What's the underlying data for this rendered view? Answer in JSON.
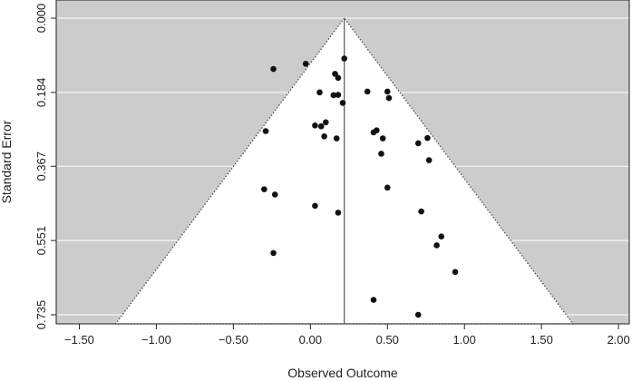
{
  "chart_data": {
    "type": "scatter",
    "subtype": "funnel-plot",
    "title": "",
    "xlabel": "Observed Outcome",
    "ylabel": "Standard Error",
    "xlim": [
      -1.65,
      2.07
    ],
    "ylim": [
      0.0,
      0.735
    ],
    "y_reversed": true,
    "x_ticks": [
      -1.5,
      -1.0,
      -0.5,
      0.0,
      0.5,
      1.0,
      1.5,
      2.0
    ],
    "x_tick_labels": [
      "−1.50",
      "−1.00",
      "−0.50",
      "0.00",
      "0.50",
      "1.00",
      "1.50",
      "2.00"
    ],
    "y_ticks": [
      0.0,
      0.184,
      0.367,
      0.551,
      0.735
    ],
    "y_tick_labels": [
      "0.000",
      "0.184",
      "0.367",
      "0.551",
      "0.735"
    ],
    "center_estimate": 0.22,
    "funnel_z": 1.96,
    "grid": true,
    "colors": {
      "outside_region": "#cccccc",
      "funnel_region": "#ffffff",
      "gridline": "#ffffff",
      "points": "#111111",
      "center_line": "#555555"
    },
    "points": [
      {
        "x": 0.22,
        "y": 0.1
      },
      {
        "x": -0.03,
        "y": 0.113
      },
      {
        "x": -0.24,
        "y": 0.126
      },
      {
        "x": 0.16,
        "y": 0.138
      },
      {
        "x": 0.18,
        "y": 0.148
      },
      {
        "x": 0.06,
        "y": 0.184
      },
      {
        "x": 0.37,
        "y": 0.182
      },
      {
        "x": 0.5,
        "y": 0.182
      },
      {
        "x": 0.15,
        "y": 0.191
      },
      {
        "x": 0.18,
        "y": 0.19
      },
      {
        "x": 0.51,
        "y": 0.198
      },
      {
        "x": 0.21,
        "y": 0.21
      },
      {
        "x": 0.1,
        "y": 0.258
      },
      {
        "x": 0.03,
        "y": 0.266
      },
      {
        "x": 0.07,
        "y": 0.268
      },
      {
        "x": -0.29,
        "y": 0.28
      },
      {
        "x": 0.43,
        "y": 0.278
      },
      {
        "x": 0.41,
        "y": 0.283
      },
      {
        "x": 0.09,
        "y": 0.293
      },
      {
        "x": 0.17,
        "y": 0.298
      },
      {
        "x": 0.47,
        "y": 0.298
      },
      {
        "x": 0.76,
        "y": 0.297
      },
      {
        "x": 0.7,
        "y": 0.31
      },
      {
        "x": 0.46,
        "y": 0.336
      },
      {
        "x": 0.77,
        "y": 0.352
      },
      {
        "x": 0.5,
        "y": 0.42
      },
      {
        "x": -0.3,
        "y": 0.424
      },
      {
        "x": -0.23,
        "y": 0.437
      },
      {
        "x": 0.03,
        "y": 0.465
      },
      {
        "x": 0.18,
        "y": 0.482
      },
      {
        "x": 0.72,
        "y": 0.479
      },
      {
        "x": 0.85,
        "y": 0.541
      },
      {
        "x": 0.82,
        "y": 0.563
      },
      {
        "x": -0.24,
        "y": 0.582
      },
      {
        "x": 0.94,
        "y": 0.629
      },
      {
        "x": 0.41,
        "y": 0.698
      },
      {
        "x": 0.7,
        "y": 0.735
      }
    ]
  }
}
